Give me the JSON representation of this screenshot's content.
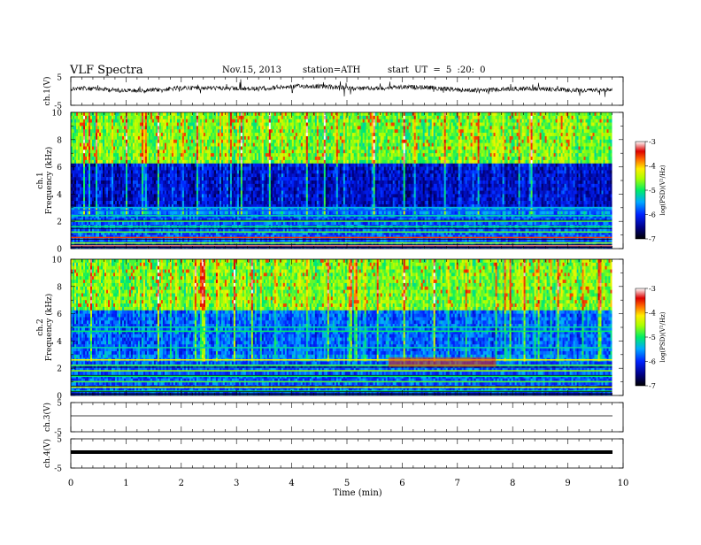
{
  "header": {
    "title": "VLF Spectra",
    "date": "Nov.15, 2013",
    "station": "station=ATH",
    "start_ut": "start UT = 5 :20: 0"
  },
  "chart_data": [
    {
      "type": "line",
      "ylabel": "ch.1(V)",
      "yticks": [
        "5",
        "-5"
      ],
      "ylim": [
        -5,
        5
      ],
      "description_trace": "noisy waveform near upper-middle"
    },
    {
      "type": "heatmap",
      "ylabel": "ch.1",
      "ylabel2": "Frequency (kHz)",
      "yticks": [
        "0",
        "2",
        "4",
        "6",
        "8",
        "10"
      ],
      "ylim": [
        0,
        10
      ],
      "colorbar": {
        "label": "log(PSD)(V²/Hz)",
        "ticks": [
          "-3",
          "-4",
          "-5",
          "-6",
          "-7"
        ],
        "range": [
          -7,
          -3
        ]
      }
    },
    {
      "type": "heatmap",
      "ylabel": "ch.2",
      "ylabel2": "Frequency (kHz)",
      "yticks": [
        "0",
        "2",
        "4",
        "6",
        "8",
        "10"
      ],
      "ylim": [
        0,
        10
      ],
      "colorbar": {
        "label": "log(PSD)(V²/Hz)",
        "ticks": [
          "-3",
          "-4",
          "-5",
          "-6",
          "-7"
        ],
        "range": [
          -7,
          -3
        ]
      }
    },
    {
      "type": "line",
      "ylabel": "ch.3(V)",
      "yticks": [
        "5",
        "-5"
      ],
      "ylim": [
        -5,
        5
      ]
    },
    {
      "type": "line",
      "ylabel": "ch.4(V)",
      "yticks": [
        "5",
        "-5"
      ],
      "ylim": [
        -5,
        5
      ]
    }
  ],
  "xaxis": {
    "label": "Time (min)",
    "ticks": [
      "0",
      "1",
      "2",
      "3",
      "4",
      "5",
      "6",
      "7",
      "8",
      "9",
      "10"
    ],
    "xlim": [
      0,
      10
    ],
    "data_end": 9.8
  }
}
